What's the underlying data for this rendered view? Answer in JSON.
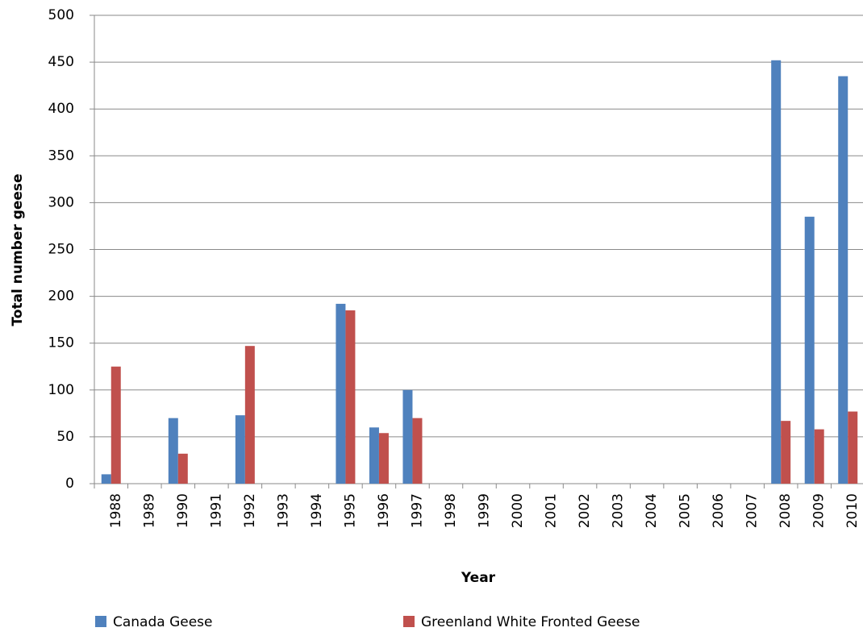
{
  "chart_data": {
    "type": "bar",
    "x_label": "Year",
    "y_label": "Total number geese",
    "categories": [
      "1988",
      "1989",
      "1990",
      "1991",
      "1992",
      "1993",
      "1994",
      "1995",
      "1996",
      "1997",
      "1998",
      "1999",
      "2000",
      "2001",
      "2002",
      "2003",
      "2004",
      "2005",
      "2006",
      "2007",
      "2008",
      "2009",
      "2010"
    ],
    "series": [
      {
        "name": "Canada Geese",
        "color": "#4f81bd",
        "values": [
          10,
          null,
          70,
          null,
          73,
          null,
          null,
          192,
          60,
          100,
          null,
          null,
          null,
          null,
          null,
          null,
          null,
          null,
          null,
          null,
          452,
          285,
          435
        ]
      },
      {
        "name": "Greenland White Fronted Geese",
        "color": "#c0504d",
        "values": [
          125,
          null,
          32,
          null,
          147,
          null,
          null,
          185,
          54,
          70,
          null,
          null,
          null,
          null,
          null,
          null,
          null,
          null,
          null,
          null,
          67,
          58,
          77
        ]
      }
    ],
    "ylim": [
      0,
      500
    ],
    "yticks": [
      0,
      50,
      100,
      150,
      200,
      250,
      300,
      350,
      400,
      450,
      500
    ],
    "grid": true,
    "legend": "bottom"
  }
}
